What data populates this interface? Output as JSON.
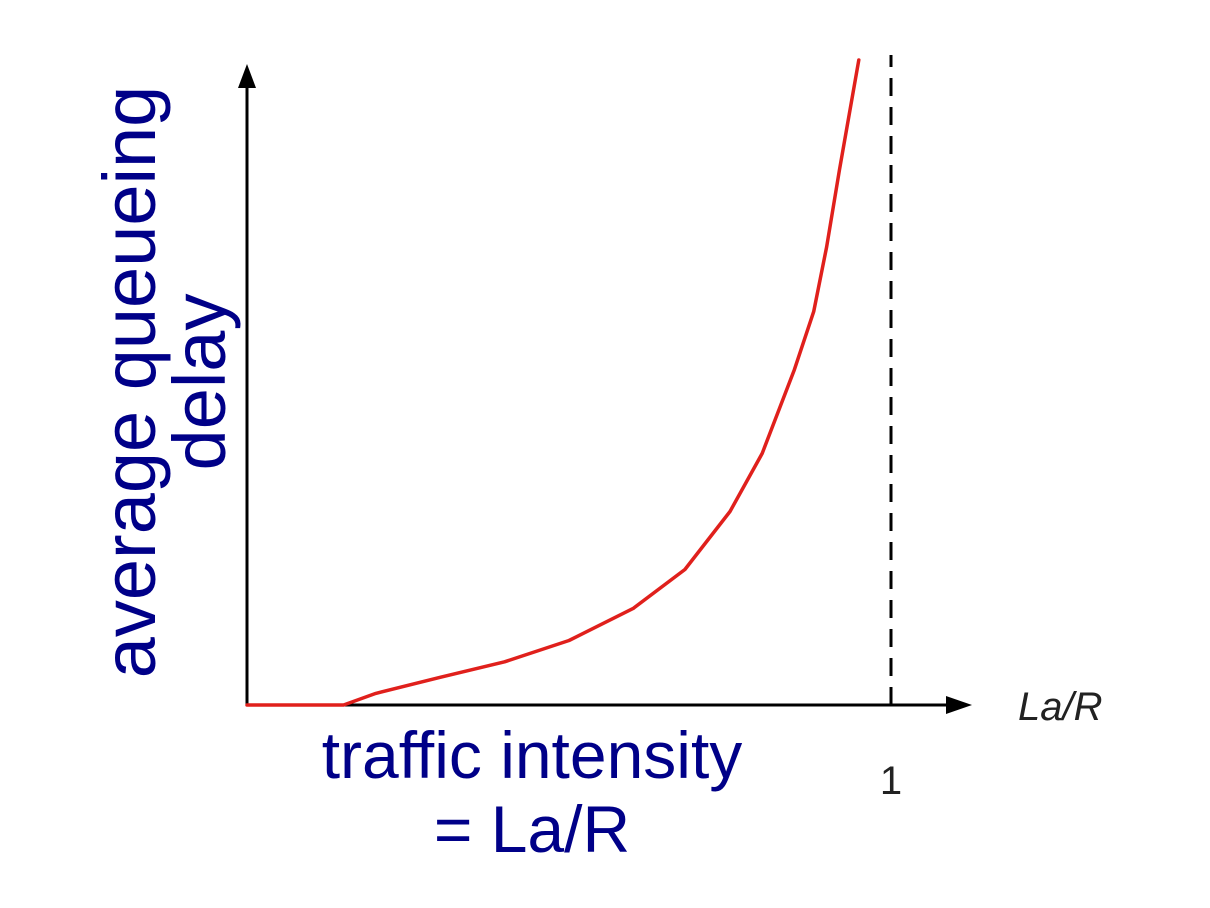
{
  "chart_data": {
    "type": "line",
    "xlabel_lines": [
      "traffic intensity",
      "= La/R"
    ],
    "ylabel_lines": [
      "average  queueing",
      "delay"
    ],
    "x_axis_variable": "La/R",
    "x_ticks": [
      {
        "value": 1,
        "label": "1"
      }
    ],
    "xlim": [
      0,
      1.1
    ],
    "ylim": [
      0,
      10
    ],
    "asymptote_x": 1,
    "grid": false,
    "series": [
      {
        "color": "#e0201c",
        "x": [
          0,
          0.15,
          0.2,
          0.3,
          0.4,
          0.5,
          0.6,
          0.68,
          0.75,
          0.8,
          0.85,
          0.88,
          0.9,
          0.92,
          0.95
        ],
        "y": [
          0,
          0,
          0.18,
          0.43,
          0.67,
          1.0,
          1.5,
          2.1,
          3.0,
          3.9,
          5.2,
          6.1,
          7.1,
          8.3,
          10
        ]
      }
    ]
  }
}
